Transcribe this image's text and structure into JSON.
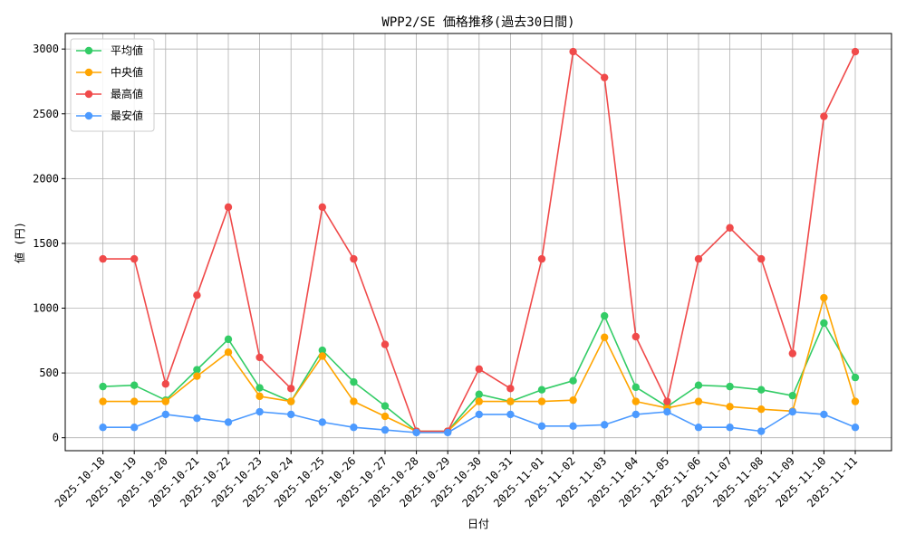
{
  "chart_data": {
    "type": "line",
    "title": "WPP2/SE 価格推移(過去30日間)",
    "xlabel": "日付",
    "ylabel": "値 (円)",
    "ylim": [
      -100,
      3120
    ],
    "yticks": [
      0,
      500,
      1000,
      1500,
      2000,
      2500,
      3000
    ],
    "grid": true,
    "legend_position": "top-left",
    "categories": [
      "2025-10-18",
      "2025-10-19",
      "2025-10-20",
      "2025-10-21",
      "2025-10-22",
      "2025-10-23",
      "2025-10-24",
      "2025-10-25",
      "2025-10-26",
      "2025-10-27",
      "2025-10-28",
      "2025-10-29",
      "2025-10-30",
      "2025-10-31",
      "2025-11-01",
      "2025-11-02",
      "2025-11-03",
      "2025-11-04",
      "2025-11-05",
      "2025-11-06",
      "2025-11-07",
      "2025-11-08",
      "2025-11-09",
      "2025-11-10",
      "2025-11-11"
    ],
    "series": [
      {
        "name": "平均値",
        "color": "#33cc66",
        "values": [
          395,
          405,
          290,
          525,
          760,
          385,
          280,
          675,
          430,
          245,
          50,
          50,
          335,
          280,
          370,
          440,
          940,
          390,
          240,
          405,
          395,
          370,
          325,
          885,
          465
        ]
      },
      {
        "name": "中央値",
        "color": "#ffa500",
        "values": [
          280,
          280,
          280,
          475,
          660,
          320,
          280,
          630,
          280,
          165,
          50,
          50,
          280,
          280,
          280,
          290,
          775,
          280,
          230,
          280,
          240,
          220,
          205,
          1080,
          280
        ]
      },
      {
        "name": "最高値",
        "color": "#f04a4a",
        "values": [
          1380,
          1380,
          415,
          1100,
          1780,
          620,
          380,
          1780,
          1380,
          720,
          50,
          50,
          530,
          380,
          1380,
          2980,
          2780,
          780,
          280,
          1380,
          1620,
          1380,
          650,
          2480,
          2980
        ]
      },
      {
        "name": "最安値",
        "color": "#4c9aff",
        "values": [
          80,
          80,
          180,
          150,
          120,
          200,
          180,
          120,
          80,
          60,
          40,
          40,
          180,
          180,
          90,
          90,
          100,
          180,
          200,
          80,
          80,
          50,
          200,
          180,
          80
        ]
      }
    ]
  }
}
